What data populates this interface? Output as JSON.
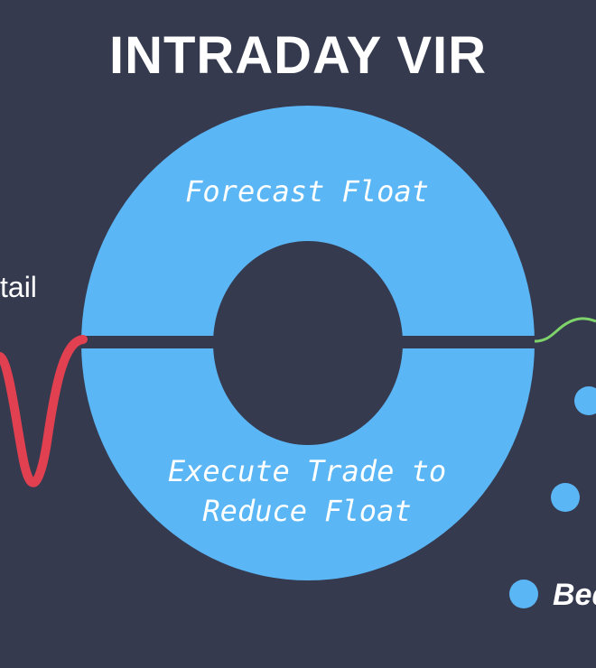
{
  "title": "INTRADAY VIR",
  "ring": {
    "top_label": "Forecast Float",
    "bottom_label_line1": "Execute Trade to",
    "bottom_label_line2": "Reduce Float"
  },
  "left_partial_label": "tail",
  "right_partial_label": "Bed",
  "colors": {
    "background": "#353a4f",
    "ring": "#5bb6f5",
    "left_wave": "#e0404f",
    "right_wave": "#7ed36a",
    "text": "#ffffff"
  }
}
